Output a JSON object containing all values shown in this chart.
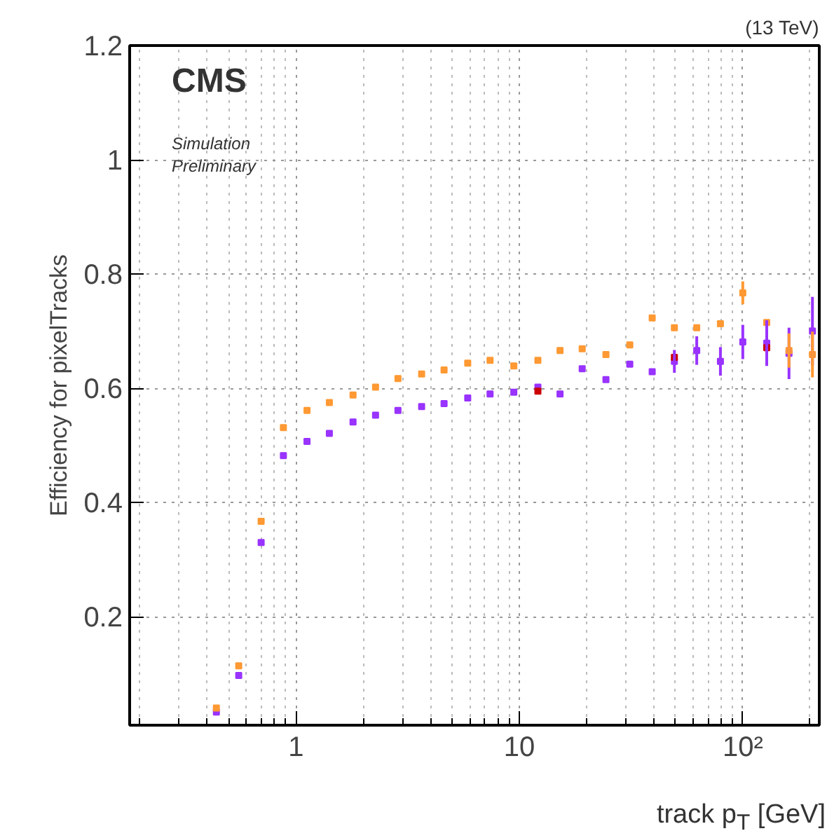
{
  "chart_data": {
    "type": "scatter",
    "xlabel": "track p$_{T}$ [GeV]",
    "ylabel": "Efficiency for pixelTracks",
    "annotations": [
      "(13 TeV)",
      "CMS",
      "Simulation",
      "Preliminary"
    ],
    "x": [
      0.44,
      0.554,
      0.698,
      0.878,
      1.12,
      1.41,
      1.8,
      2.27,
      2.86,
      3.65,
      4.6,
      5.87,
      7.39,
      9.44,
      12.1,
      15.2,
      19.1,
      24.4,
      31.2,
      39.3,
      49.4,
      62.2,
      79.4,
      100,
      128,
      161,
      205
    ],
    "series": [
      {
        "color": "#ff9933",
        "values": [
          0.04,
          0.114,
          0.367,
          0.531,
          0.561,
          0.575,
          0.588,
          0.602,
          0.617,
          0.625,
          0.632,
          0.644,
          0.649,
          0.639,
          0.649,
          0.666,
          0.669,
          0.659,
          0.676,
          0.723,
          0.706,
          0.706,
          0.713,
          0.767,
          0.715,
          0.666,
          0.659
        ],
        "errors": [
          null,
          null,
          null,
          null,
          null,
          null,
          null,
          null,
          null,
          null,
          null,
          null,
          null,
          null,
          null,
          null,
          null,
          null,
          null,
          null,
          null,
          null,
          null,
          0.02,
          null,
          0.03,
          0.04
        ]
      },
      {
        "color": "#cc0000",
        "values": [
          null,
          null,
          null,
          null,
          null,
          null,
          null,
          null,
          null,
          null,
          null,
          null,
          null,
          null,
          0.595,
          null,
          null,
          null,
          null,
          null,
          0.654,
          null,
          null,
          null,
          0.671,
          null,
          null
        ]
      },
      {
        "color": "#9933ff",
        "values": [
          0.033,
          0.097,
          0.33,
          0.482,
          0.507,
          0.521,
          0.541,
          0.553,
          0.561,
          0.568,
          0.573,
          0.583,
          0.59,
          0.593,
          0.602,
          0.59,
          0.634,
          0.615,
          0.642,
          0.629,
          0.647,
          0.666,
          0.647,
          0.681,
          0.679,
          0.661,
          0.7
        ],
        "errors": [
          null,
          null,
          null,
          null,
          null,
          null,
          null,
          null,
          null,
          null,
          null,
          null,
          null,
          null,
          null,
          null,
          null,
          null,
          null,
          null,
          0.02,
          0.025,
          0.025,
          0.03,
          0.04,
          0.045,
          0.06
        ]
      }
    ],
    "log": "x",
    "xlim": [
      0.18,
      220
    ],
    "ylim": [
      0.01,
      1.2
    ],
    "xticks": [
      1,
      10,
      {
        "value": 100,
        "label": "10²"
      }
    ],
    "yticks": [
      0.2,
      0.4,
      0.6,
      0.8,
      1,
      1.2
    ],
    "grid": true,
    "marker": "square"
  }
}
